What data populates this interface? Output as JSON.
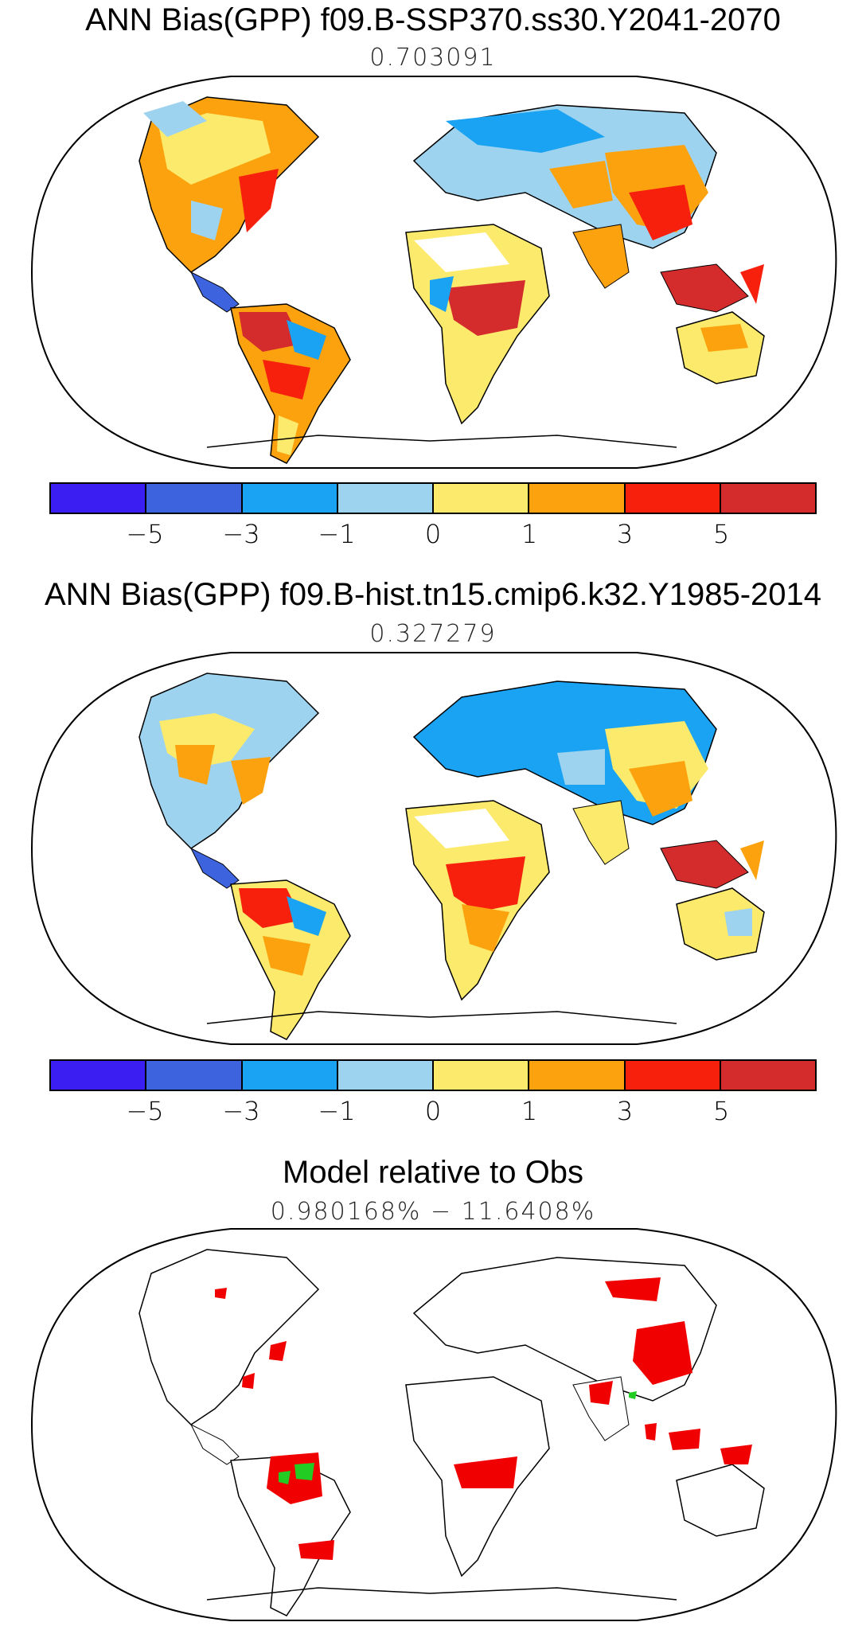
{
  "panels": [
    {
      "title": "ANN Bias(GPP) f09.B-SSP370.ss30.Y2041-2070",
      "subtitle": "0.703091"
    },
    {
      "title": "ANN Bias(GPP) f09.B-hist.tn15.cmip6.k32.Y1985-2014",
      "subtitle": "0.327279"
    },
    {
      "title": "Model relative to Obs",
      "subtitle": "0.980168% − 11.6408%"
    }
  ],
  "colorbar": {
    "colors": [
      "#3a1ef2",
      "#3d63de",
      "#1aa3f2",
      "#9ed3ef",
      "#fbea6b",
      "#fba20e",
      "#f6200d",
      "#d42c2c"
    ],
    "ticks": [
      "−5",
      "−3",
      "−1",
      "0",
      "1",
      "3",
      "5"
    ]
  },
  "legend_colors": {
    "land_outline": "#000000",
    "relative_worse": "#f00000",
    "relative_better": "#22cc22"
  }
}
